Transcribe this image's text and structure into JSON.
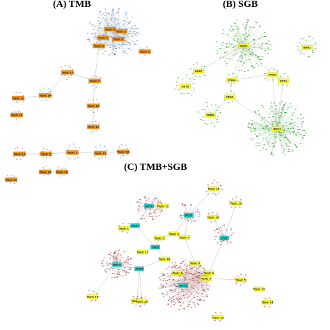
{
  "panels": {
    "a": {
      "title": "(A) TMB",
      "node_color": "#f39a1e",
      "node_border": "#c06a00",
      "leaf_color": "#6a8fb5",
      "hubs": [
        {
          "id": "a1",
          "label": "Topic 8"
        },
        {
          "id": "a2",
          "label": "Topic 3"
        },
        {
          "id": "a3",
          "label": "Topic 4"
        },
        {
          "id": "a4",
          "label": "Topic 9"
        },
        {
          "id": "a5",
          "label": "Topic 6"
        },
        {
          "id": "a6",
          "label": "Topic 2"
        },
        {
          "id": "a7",
          "label": "Topic 17"
        },
        {
          "id": "a8",
          "label": "Topic 7"
        },
        {
          "id": "a9",
          "label": "Topic 14"
        },
        {
          "id": "a10",
          "label": "Topic 10"
        },
        {
          "id": "a11",
          "label": "Topic 11"
        },
        {
          "id": "a12",
          "label": "Topic 12"
        },
        {
          "id": "a13",
          "label": "Topic 18"
        },
        {
          "id": "a14",
          "label": "Topic 13"
        },
        {
          "id": "a15",
          "label": "Topic 5"
        },
        {
          "id": "a16",
          "label": "Topic 1"
        },
        {
          "id": "a17",
          "label": "Topic 15"
        },
        {
          "id": "a18",
          "label": "Topic 16"
        },
        {
          "id": "a19",
          "label": "Topic 19"
        },
        {
          "id": "a20",
          "label": "Topic 20"
        },
        {
          "id": "a21",
          "label": "Topic 21"
        }
      ]
    },
    "b": {
      "title": "(B) SGB",
      "node_color": "#ffff33",
      "node_border": "#b8b800",
      "leaf_color": "#3fa33f",
      "hubs": [
        {
          "id": "b1",
          "label": "DDX3"
        },
        {
          "id": "b2",
          "label": "GSTS"
        },
        {
          "id": "b3",
          "label": "ANAT"
        },
        {
          "id": "b4",
          "label": "GBN1"
        },
        {
          "id": "b5",
          "label": "POR4"
        },
        {
          "id": "b6",
          "label": "PRUS"
        },
        {
          "id": "b7",
          "label": "CBG3"
        },
        {
          "id": "b8",
          "label": "HSY1"
        },
        {
          "id": "b9",
          "label": "PBRN"
        },
        {
          "id": "b10",
          "label": "BRG3"
        }
      ]
    },
    "c": {
      "title": "(C) TMB+SGB",
      "topic_color": "#ffff33",
      "topic_border": "#b8b800",
      "gene_color": "#22d8d0",
      "gene_border": "#0a8f8a",
      "leaf_color": "#a04a4a",
      "topics": [
        {
          "id": "c1",
          "label": "Topic 16"
        },
        {
          "id": "c2",
          "label": "Topic 12"
        },
        {
          "id": "c3",
          "label": "Topic 19"
        },
        {
          "id": "c4",
          "label": "Topic 10"
        },
        {
          "id": "c5",
          "label": "Topic 1"
        },
        {
          "id": "c6",
          "label": "Topic 2"
        },
        {
          "id": "c7",
          "label": "Topic 3"
        },
        {
          "id": "c8",
          "label": "Topic 7"
        },
        {
          "id": "c9",
          "label": "Topic 17"
        },
        {
          "id": "c10",
          "label": "Topic 18"
        },
        {
          "id": "c11",
          "label": "Topic 8"
        },
        {
          "id": "c12",
          "label": "Topic 4"
        },
        {
          "id": "c13",
          "label": "Topic 9"
        },
        {
          "id": "c14",
          "label": "Topic 5"
        },
        {
          "id": "c15",
          "label": "Topic 6"
        },
        {
          "id": "c16",
          "label": "Topic 11"
        },
        {
          "id": "c17",
          "label": "Topic 13"
        },
        {
          "id": "c18",
          "label": "Topic 14"
        },
        {
          "id": "c19",
          "label": "Topic 15"
        },
        {
          "id": "c20",
          "label": "Topic 20"
        },
        {
          "id": "c21",
          "label": "Topic 21"
        }
      ],
      "genes": [
        {
          "id": "g1",
          "label": "GSTS"
        },
        {
          "id": "g2",
          "label": "ANAT"
        },
        {
          "id": "g3",
          "label": "PRUS"
        },
        {
          "id": "g4",
          "label": "CBG3"
        },
        {
          "id": "g5",
          "label": "LPS1"
        },
        {
          "id": "g6",
          "label": "BDF2"
        },
        {
          "id": "g7",
          "label": "POR4"
        },
        {
          "id": "g8",
          "label": "DDX3"
        }
      ]
    }
  }
}
